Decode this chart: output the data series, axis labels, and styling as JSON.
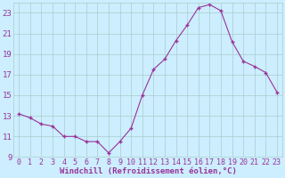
{
  "x": [
    0,
    1,
    2,
    3,
    4,
    5,
    6,
    7,
    8,
    9,
    10,
    11,
    12,
    13,
    14,
    15,
    16,
    17,
    18,
    19,
    20,
    21,
    22,
    23
  ],
  "y": [
    13.2,
    12.8,
    12.2,
    12.0,
    11.0,
    11.0,
    10.5,
    10.5,
    9.4,
    10.5,
    11.8,
    15.0,
    17.5,
    18.5,
    20.3,
    21.8,
    23.5,
    23.8,
    23.2,
    20.2,
    18.3,
    17.8,
    17.2,
    15.3
  ],
  "line_color": "#993399",
  "marker": "+",
  "marker_size": 3,
  "line_width": 0.8,
  "xlabel": "Windchill (Refroidissement éolien,°C)",
  "xlim_min": -0.5,
  "xlim_max": 23.5,
  "ylim_min": 9,
  "ylim_max": 24,
  "yticks": [
    9,
    11,
    13,
    15,
    17,
    19,
    21,
    23
  ],
  "xticks": [
    0,
    1,
    2,
    3,
    4,
    5,
    6,
    7,
    8,
    9,
    10,
    11,
    12,
    13,
    14,
    15,
    16,
    17,
    18,
    19,
    20,
    21,
    22,
    23
  ],
  "bg_color": "#cceeff",
  "grid_color": "#aacccc",
  "tick_label_color": "#993399",
  "xlabel_color": "#993399",
  "xlabel_fontsize": 6.5,
  "tick_fontsize": 6,
  "ytick_fontsize": 6.5
}
